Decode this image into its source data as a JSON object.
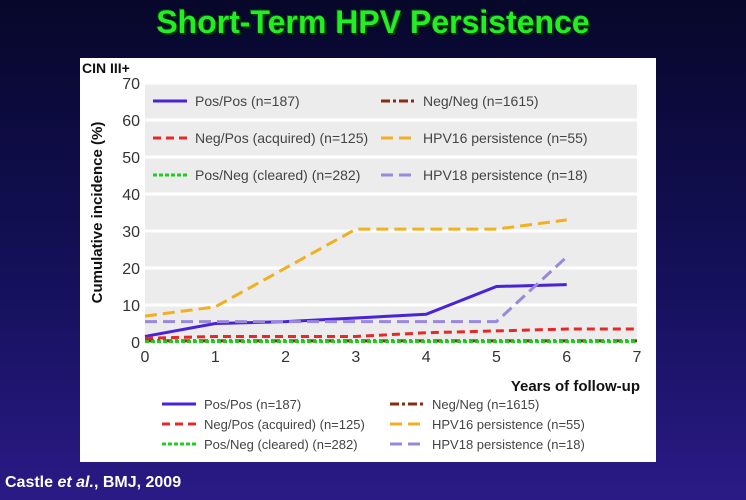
{
  "slide": {
    "title": "Short-Term HPV Persistence",
    "citation_author": "Castle ",
    "citation_etal": "et al.",
    "citation_rest": ", BMJ, 2009"
  },
  "chart_data": {
    "type": "line",
    "title": "CIN III+",
    "xlabel": "Years of follow-up",
    "ylabel": "Cumulative incidence (%)",
    "xlim": [
      0,
      7
    ],
    "ylim": [
      0,
      70
    ],
    "xticks": [
      0,
      1,
      2,
      3,
      4,
      5,
      6,
      7
    ],
    "yticks": [
      0,
      10,
      20,
      30,
      40,
      50,
      60,
      70
    ],
    "grid": true,
    "legend_placement": "top-inside and below",
    "series": [
      {
        "name": "Pos/Pos (n=187)",
        "color": "#4a22d8",
        "dash": "solid",
        "x": [
          0,
          1,
          2,
          3,
          4,
          5,
          6
        ],
        "y": [
          1.5,
          5,
          5.5,
          6.5,
          7.5,
          15,
          15.5
        ]
      },
      {
        "name": "Neg/Neg (n=1615)",
        "color": "#8a2a10",
        "dash": "dashdot",
        "x": [
          0,
          7
        ],
        "y": [
          0.3,
          0.3
        ]
      },
      {
        "name": "Neg/Pos (acquired) (n=125)",
        "color": "#e82828",
        "dash": "dash",
        "x": [
          0,
          1,
          3,
          4,
          5,
          6,
          7
        ],
        "y": [
          1,
          1.5,
          1.5,
          2.5,
          3,
          3.5,
          3.5
        ]
      },
      {
        "name": "HPV16 persistence (n=55)",
        "color": "#f0b020",
        "dash": "longdash",
        "x": [
          0,
          1,
          3,
          5,
          6
        ],
        "y": [
          7,
          9.5,
          30.5,
          30.5,
          33
        ]
      },
      {
        "name": "Pos/Neg (cleared) (n=282)",
        "color": "#22cc22",
        "dash": "dot",
        "x": [
          0,
          7
        ],
        "y": [
          0.1,
          0.1
        ]
      },
      {
        "name": "HPV18 persistence (n=18)",
        "color": "#9a88dd",
        "dash": "longdash",
        "x": [
          0,
          5,
          6
        ],
        "y": [
          5.5,
          5.5,
          23
        ]
      }
    ]
  }
}
